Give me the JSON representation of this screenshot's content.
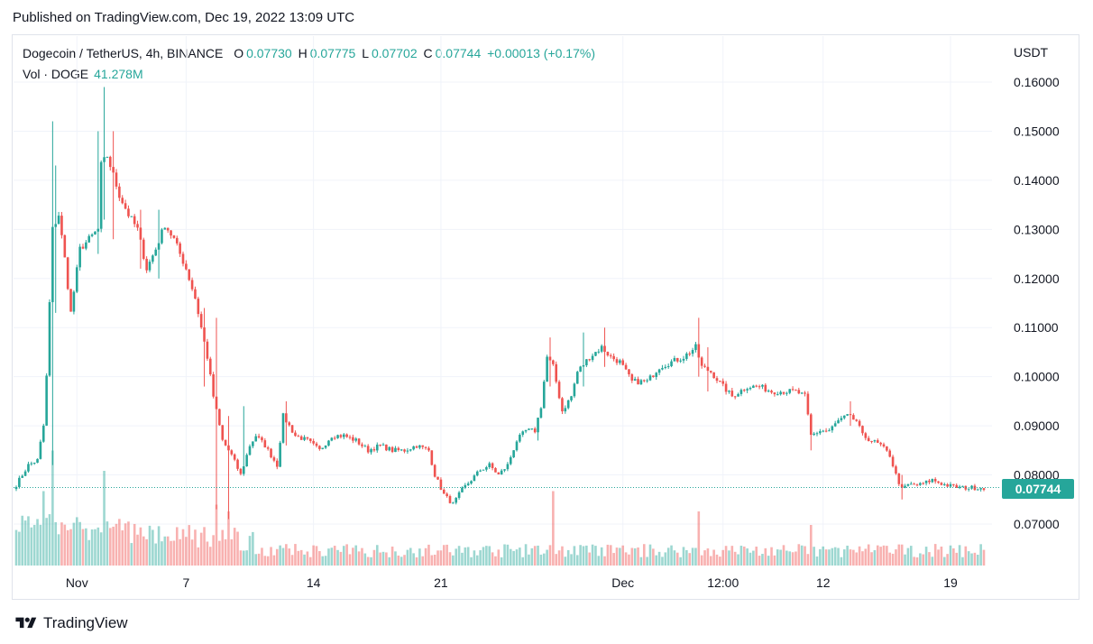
{
  "header": {
    "published": "Published on TradingView.com, Dec 19, 2022 13:09 UTC"
  },
  "legend": {
    "symbol": "Dogecoin / TetherUS, 4h, BINANCE",
    "o_label": "O",
    "o_value": "0.07730",
    "h_label": "H",
    "h_value": "0.07775",
    "l_label": "L",
    "l_value": "0.07702",
    "c_label": "C",
    "c_value": "0.07744",
    "change": "+0.00013 (+0.17%)"
  },
  "volume_legend": {
    "label": "Vol · DOGE",
    "value": "41.278M"
  },
  "footer": {
    "brand": "TradingView"
  },
  "colors": {
    "up": "#26a69a",
    "down": "#ef5350",
    "grid": "#f0f3fa"
  },
  "chart_data": {
    "type": "candlestick",
    "title": "Dogecoin / TetherUS, 4h, BINANCE",
    "y_axis_label": "USDT",
    "ylim": [
      0.062,
      0.168
    ],
    "y_ticks": [
      "0.16000",
      "0.15000",
      "0.14000",
      "0.13000",
      "0.12000",
      "0.11000",
      "0.10000",
      "0.09000",
      "0.08000",
      "0.07000"
    ],
    "y_tick_values": [
      0.16,
      0.15,
      0.14,
      0.13,
      0.12,
      0.11,
      0.1,
      0.09,
      0.08,
      0.07
    ],
    "x_ticks": [
      {
        "label": "Nov",
        "index": 20
      },
      {
        "label": "7",
        "index": 56
      },
      {
        "label": "14",
        "index": 98
      },
      {
        "label": "21",
        "index": 140
      },
      {
        "label": "Dec",
        "index": 200
      },
      {
        "label": "12:00",
        "index": 233
      },
      {
        "label": "12",
        "index": 266
      },
      {
        "label": "19",
        "index": 308
      }
    ],
    "last_price": 0.07744,
    "last_price_label": "0.07744",
    "n_bars": 320,
    "anchors": [
      [
        0,
        0.078
      ],
      [
        4,
        0.082
      ],
      [
        7,
        0.083
      ],
      [
        9,
        0.09
      ],
      [
        10,
        0.1
      ],
      [
        12,
        0.13
      ],
      [
        14,
        0.133
      ],
      [
        16,
        0.124
      ],
      [
        18,
        0.113
      ],
      [
        21,
        0.126
      ],
      [
        24,
        0.128
      ],
      [
        27,
        0.13
      ],
      [
        28,
        0.143
      ],
      [
        30,
        0.145
      ],
      [
        34,
        0.137
      ],
      [
        37,
        0.133
      ],
      [
        40,
        0.13
      ],
      [
        43,
        0.122
      ],
      [
        46,
        0.126
      ],
      [
        49,
        0.131
      ],
      [
        52,
        0.128
      ],
      [
        54,
        0.125
      ],
      [
        56,
        0.122
      ],
      [
        59,
        0.116
      ],
      [
        61,
        0.11
      ],
      [
        63,
        0.104
      ],
      [
        65,
        0.096
      ],
      [
        68,
        0.087
      ],
      [
        71,
        0.084
      ],
      [
        74,
        0.08
      ],
      [
        77,
        0.086
      ],
      [
        79,
        0.088
      ],
      [
        82,
        0.086
      ],
      [
        86,
        0.082
      ],
      [
        88,
        0.092
      ],
      [
        92,
        0.088
      ],
      [
        96,
        0.087
      ],
      [
        100,
        0.085
      ],
      [
        104,
        0.088
      ],
      [
        108,
        0.088
      ],
      [
        112,
        0.087
      ],
      [
        116,
        0.085
      ],
      [
        120,
        0.086
      ],
      [
        124,
        0.085
      ],
      [
        128,
        0.085
      ],
      [
        132,
        0.086
      ],
      [
        136,
        0.085
      ],
      [
        138,
        0.08
      ],
      [
        141,
        0.076
      ],
      [
        144,
        0.074
      ],
      [
        147,
        0.077
      ],
      [
        150,
        0.079
      ],
      [
        153,
        0.081
      ],
      [
        156,
        0.082
      ],
      [
        159,
        0.08
      ],
      [
        162,
        0.082
      ],
      [
        165,
        0.087
      ],
      [
        168,
        0.089
      ],
      [
        171,
        0.089
      ],
      [
        173,
        0.094
      ],
      [
        175,
        0.104
      ],
      [
        177,
        0.102
      ],
      [
        180,
        0.093
      ],
      [
        183,
        0.096
      ],
      [
        185,
        0.101
      ],
      [
        189,
        0.104
      ],
      [
        193,
        0.106
      ],
      [
        196,
        0.104
      ],
      [
        199,
        0.103
      ],
      [
        203,
        0.099
      ],
      [
        208,
        0.099
      ],
      [
        212,
        0.102
      ],
      [
        216,
        0.103
      ],
      [
        220,
        0.104
      ],
      [
        224,
        0.106
      ],
      [
        226,
        0.102
      ],
      [
        229,
        0.101
      ],
      [
        233,
        0.098
      ],
      [
        236,
        0.096
      ],
      [
        241,
        0.098
      ],
      [
        245,
        0.098
      ],
      [
        249,
        0.097
      ],
      [
        253,
        0.097
      ],
      [
        257,
        0.097
      ],
      [
        260,
        0.096
      ],
      [
        262,
        0.088
      ],
      [
        265,
        0.089
      ],
      [
        268,
        0.089
      ],
      [
        271,
        0.091
      ],
      [
        274,
        0.092
      ],
      [
        277,
        0.091
      ],
      [
        279,
        0.088
      ],
      [
        282,
        0.087
      ],
      [
        285,
        0.086
      ],
      [
        288,
        0.084
      ],
      [
        290,
        0.08
      ],
      [
        292,
        0.077
      ],
      [
        294,
        0.078
      ],
      [
        298,
        0.078
      ],
      [
        302,
        0.079
      ],
      [
        306,
        0.078
      ],
      [
        310,
        0.0775
      ],
      [
        312,
        0.0774
      ]
    ],
    "spikes": [
      [
        12,
        0.152,
        0.082
      ],
      [
        13,
        0.143,
        0.113
      ],
      [
        27,
        0.15,
        0.125
      ],
      [
        29,
        0.159,
        0.132
      ],
      [
        32,
        0.15,
        0.128
      ],
      [
        41,
        0.134,
        0.122
      ],
      [
        47,
        0.134,
        0.12
      ],
      [
        62,
        0.114,
        0.098
      ],
      [
        66,
        0.112,
        0.073
      ],
      [
        70,
        0.092,
        0.071
      ],
      [
        75,
        0.094,
        0.08
      ],
      [
        89,
        0.095,
        0.086
      ],
      [
        172,
        0.091,
        0.087
      ],
      [
        176,
        0.108,
        0.098
      ],
      [
        187,
        0.109,
        0.098
      ],
      [
        194,
        0.11,
        0.102
      ],
      [
        225,
        0.112,
        0.1
      ],
      [
        228,
        0.106,
        0.097
      ],
      [
        262,
        0.091,
        0.085
      ],
      [
        275,
        0.095,
        0.09
      ],
      [
        292,
        0.08,
        0.075
      ]
    ],
    "volume": {
      "label": "Vol · DOGE",
      "spikes": [
        [
          12,
          0.85
        ],
        [
          9,
          0.55
        ],
        [
          29,
          0.7
        ],
        [
          66,
          0.45
        ],
        [
          70,
          0.4
        ],
        [
          177,
          0.55
        ],
        [
          225,
          0.4
        ],
        [
          262,
          0.3
        ]
      ]
    }
  }
}
